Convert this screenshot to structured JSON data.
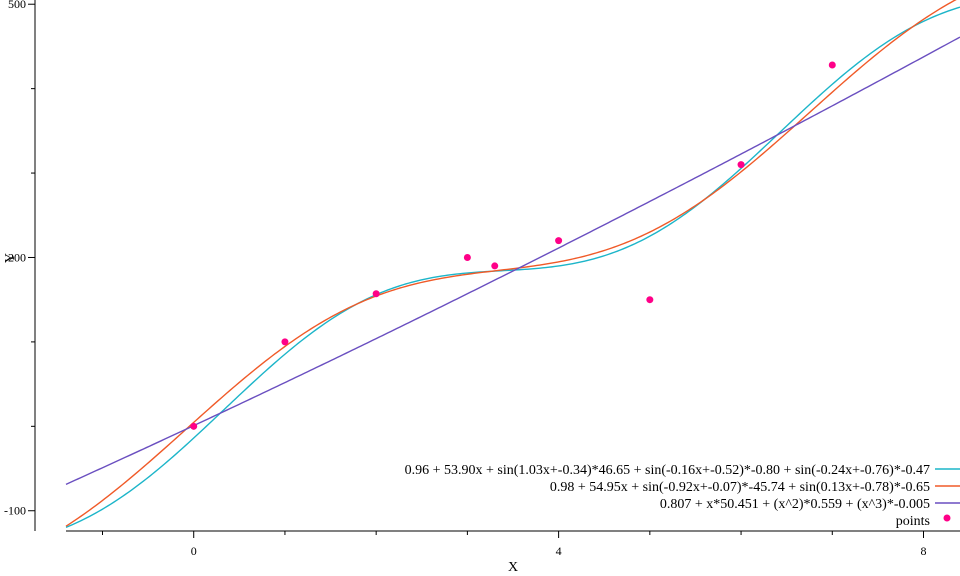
{
  "chart_data": {
    "type": "scatter",
    "title": "",
    "xlabel": "X",
    "ylabel": "Y",
    "xlim": [
      -1.4,
      8.4
    ],
    "ylim": [
      -124,
      505
    ],
    "x_ticks": [
      {
        "value": 0,
        "label": "0"
      },
      {
        "value": 4,
        "label": "4"
      },
      {
        "value": 8,
        "label": "8"
      }
    ],
    "x_minor_ticks": [
      -1,
      1,
      2,
      3,
      5,
      6,
      7
    ],
    "y_ticks": [
      {
        "value": -100,
        "label": "-100"
      },
      {
        "value": 200,
        "label": "200"
      },
      {
        "value": 500,
        "label": "500"
      }
    ],
    "y_minor_ticks": [
      0,
      100,
      300,
      400
    ],
    "grid": false,
    "legend_position": "bottom-right",
    "points": {
      "name": "points",
      "color": "#ff0088",
      "x": [
        0,
        1,
        2,
        3,
        3.3,
        4,
        5,
        6,
        7
      ],
      "y": [
        0,
        100,
        157,
        200,
        190,
        220,
        150,
        310,
        428
      ]
    },
    "series": [
      {
        "name": "0.96 + 53.90x + sin(1.03x+-0.34)*46.65 + sin(-0.16x+-0.52)*-0.80 + sin(-0.24x+-0.76)*-0.47",
        "color": "#1cb5c9",
        "coeffs": {
          "c": 0.96,
          "b": 53.9,
          "sines": [
            [
              1.03,
              -0.34,
              46.65
            ],
            [
              -0.16,
              -0.52,
              -0.8
            ],
            [
              -0.24,
              -0.76,
              -0.47
            ]
          ]
        }
      },
      {
        "name": "0.98 + 54.95x + sin(-0.92x+-0.07)*-45.74 + sin(0.13x+-0.78)*-0.65",
        "color": "#f05a28",
        "coeffs": {
          "c": 0.98,
          "b": 54.95,
          "sines": [
            [
              -0.92,
              -0.07,
              -45.74
            ],
            [
              0.13,
              -0.78,
              -0.65
            ]
          ]
        }
      },
      {
        "name": "0.807 + x*50.451 + (x^2)*0.559 + (x^3)*-0.005",
        "color": "#6a4fc0",
        "poly": [
          0.807,
          50.451,
          0.559,
          -0.005
        ]
      }
    ]
  }
}
